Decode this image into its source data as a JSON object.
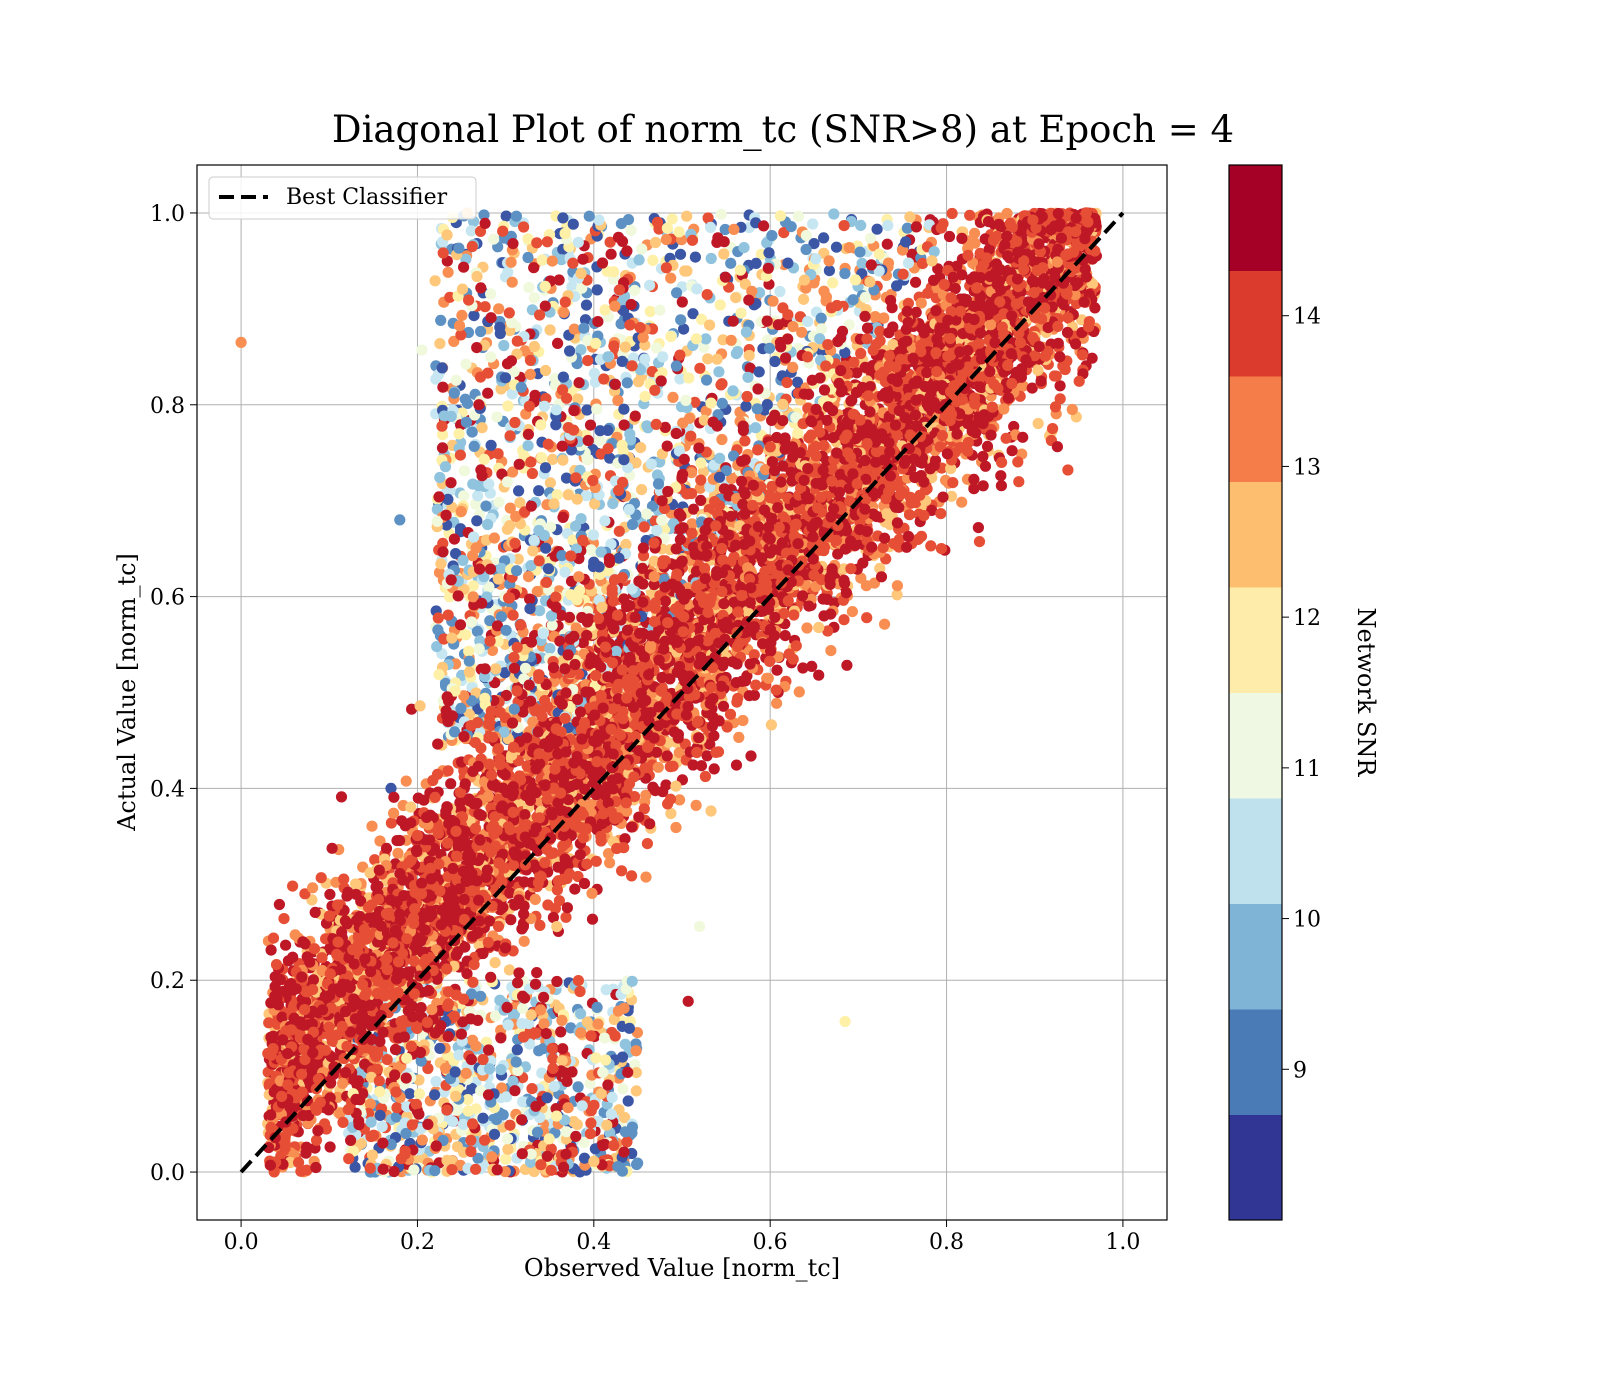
{
  "chart_data": {
    "type": "scatter",
    "title": "Diagonal Plot of norm_tc (SNR>8) at Epoch = 4",
    "xlabel": "Observed Value [norm_tc]",
    "ylabel": "Actual Value [norm_tc]",
    "xlim": [
      -0.05,
      1.05
    ],
    "ylim": [
      -0.05,
      1.05
    ],
    "x_ticks": [
      "0.0",
      "0.2",
      "0.4",
      "0.6",
      "0.8",
      "1.0"
    ],
    "y_ticks": [
      "0.0",
      "0.2",
      "0.4",
      "0.6",
      "0.8",
      "1.0"
    ],
    "grid": true,
    "legend": {
      "placement": "upper-left",
      "entries": [
        "Best Classifier"
      ]
    },
    "reference_line": {
      "name": "Best Classifier",
      "style": "dashed",
      "color": "#000000",
      "x": [
        0.0,
        1.0
      ],
      "y": [
        0.0,
        1.0
      ]
    },
    "colorbar": {
      "label": "Network SNR",
      "range": [
        8.0,
        15.0
      ],
      "ticks": [
        "9",
        "10",
        "11",
        "12",
        "13",
        "14"
      ],
      "tick_values": [
        9,
        10,
        11,
        12,
        13,
        14
      ],
      "colors": [
        "#313695",
        "#4575b4",
        "#74add1",
        "#abd9e9",
        "#e0f3f8",
        "#ffffbf",
        "#fee090",
        "#fdae61",
        "#f46d43",
        "#d73027",
        "#a50026"
      ],
      "bands": [
        "#313695",
        "#4a7bb7",
        "#80b4d6",
        "#bee1ed",
        "#eef8e2",
        "#feedaa",
        "#fdbe6f",
        "#f57d4a",
        "#db3b2c",
        "#a50026"
      ]
    },
    "points_description_sample": {
      "main_band": {
        "x_from": 0.03,
        "x_to": 0.97,
        "width": 0.14,
        "snr_high": true
      },
      "upper_region": {
        "x_from": 0.22,
        "x_to": 0.78,
        "y_to": 1.0,
        "snr_mixed": true
      },
      "lower_region": {
        "x_from": 0.2,
        "x_to": 0.45,
        "y_to": 0.2,
        "snr_mixed": true
      },
      "outliers": [
        {
          "x": 0.0,
          "y": 0.865,
          "snr": 13.2
        },
        {
          "x": 0.18,
          "y": 0.68,
          "snr": 9.2
        },
        {
          "x": 0.685,
          "y": 0.157,
          "snr": 12.2
        },
        {
          "x": 0.507,
          "y": 0.178,
          "snr": 14.6
        },
        {
          "x": 0.205,
          "y": 0.857,
          "snr": 11.3
        },
        {
          "x": 0.52,
          "y": 0.256,
          "snr": 11.2
        },
        {
          "x": 0.44,
          "y": 0.125,
          "snr": 9.8
        },
        {
          "x": 0.225,
          "y": 0.625,
          "snr": 13.3
        },
        {
          "x": 0.655,
          "y": 0.518,
          "snr": 14.6
        },
        {
          "x": 0.17,
          "y": 0.4,
          "snr": 8.4
        }
      ]
    }
  }
}
